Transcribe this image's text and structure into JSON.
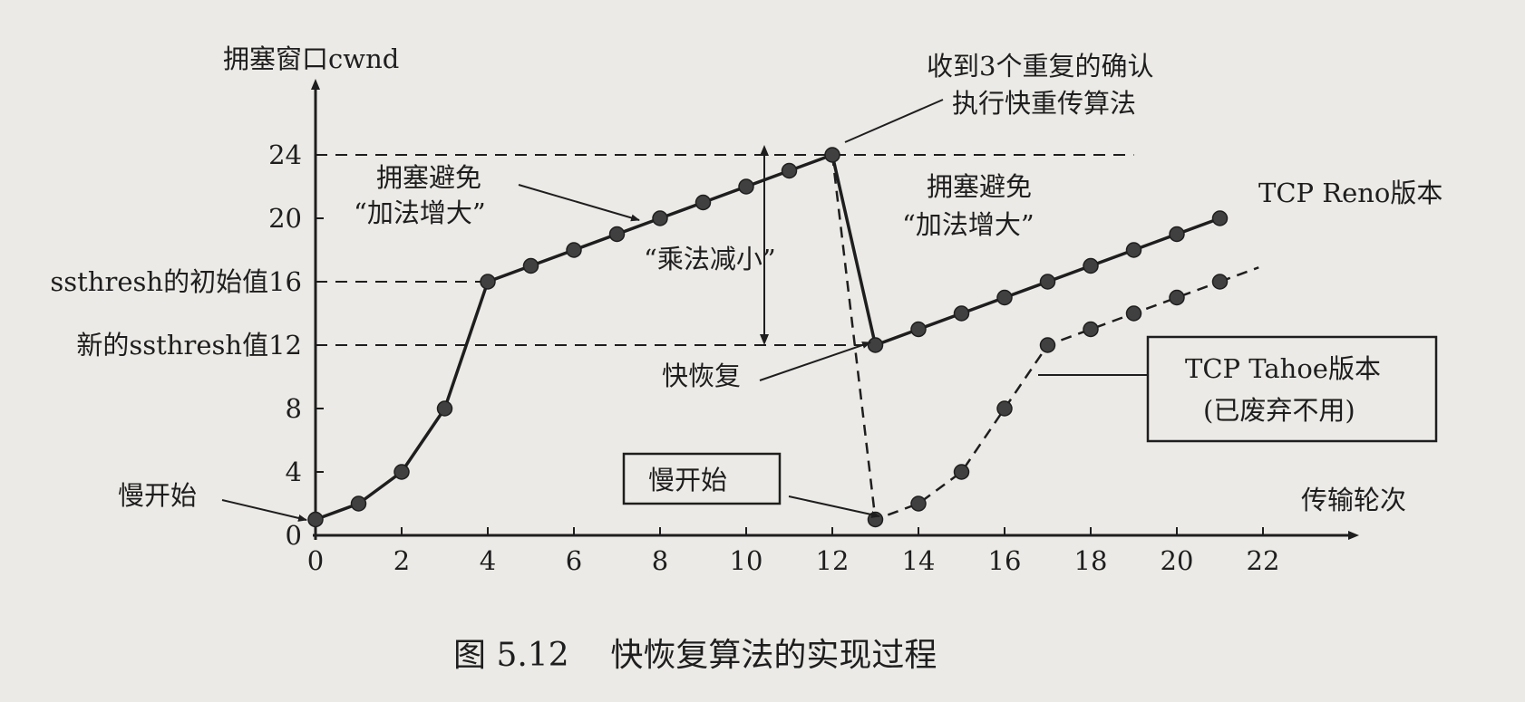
{
  "chart_data": {
    "type": "line",
    "y_axis_label": "拥塞窗口cwnd",
    "x_axis_label": "传输轮次",
    "x_ticks": [
      "0",
      "2",
      "4",
      "6",
      "8",
      "10",
      "12",
      "14",
      "16",
      "18",
      "20",
      "22"
    ],
    "y_ticks": [
      "0",
      "4",
      "8",
      "12",
      "16",
      "20",
      "24"
    ],
    "y_tick_prefixes": {
      "12": "新的ssthresh值",
      "16": "ssthresh的初始值"
    },
    "xlim": [
      0,
      23.4
    ],
    "ylim": [
      0,
      26.5
    ],
    "grid": false,
    "reference_lines": [
      {
        "y": 24,
        "x_from": 0,
        "x_to": 19
      },
      {
        "y": 16,
        "x_from": 0,
        "x_to": 4
      },
      {
        "y": 12,
        "x_from": 0,
        "x_to": 13
      }
    ],
    "series": [
      {
        "name": "TCP Reno版本",
        "style": "solid",
        "points": [
          [
            0,
            1
          ],
          [
            1,
            2
          ],
          [
            2,
            4
          ],
          [
            3,
            8
          ],
          [
            4,
            16
          ],
          [
            5,
            17
          ],
          [
            6,
            18
          ],
          [
            7,
            19
          ],
          [
            8,
            20
          ],
          [
            9,
            21
          ],
          [
            10,
            22
          ],
          [
            11,
            23
          ],
          [
            12,
            24
          ],
          [
            13,
            12
          ],
          [
            14,
            13
          ],
          [
            15,
            14
          ],
          [
            16,
            15
          ],
          [
            17,
            16
          ],
          [
            18,
            17
          ],
          [
            19,
            18
          ],
          [
            20,
            19
          ],
          [
            21,
            20
          ]
        ]
      },
      {
        "name": "TCP Tahoe版本",
        "style": "dashed",
        "points": [
          [
            12,
            24
          ],
          [
            13,
            1
          ],
          [
            14,
            2
          ],
          [
            15,
            4
          ],
          [
            16,
            8
          ],
          [
            17,
            12
          ],
          [
            18,
            13
          ],
          [
            19,
            14
          ],
          [
            20,
            15
          ],
          [
            21,
            16
          ]
        ],
        "markers_from_index": 1
      }
    ],
    "annotations": {
      "slow_start_1": "慢开始",
      "slow_start_2": "慢开始",
      "ca_1_line1": "拥塞避免",
      "ca_1_line2": "“加法增大”",
      "ca_2_line1": "拥塞避免",
      "ca_2_line2": "“加法增大”",
      "mult_decrease": "“乘法减小”",
      "dup_ack_line1": "收到3个重复的确认",
      "dup_ack_line2": "执行快重传算法",
      "fast_recovery": "快恢复",
      "reno_label": "TCP Reno版本",
      "tahoe_line1": "TCP Tahoe版本",
      "tahoe_line2": "(已废弃不用)"
    },
    "caption": "图 5.12    快恢复算法的实现过程"
  },
  "colors": {
    "ink": "#1e1e1e",
    "marker": "#404040",
    "background": "#eceae6"
  }
}
